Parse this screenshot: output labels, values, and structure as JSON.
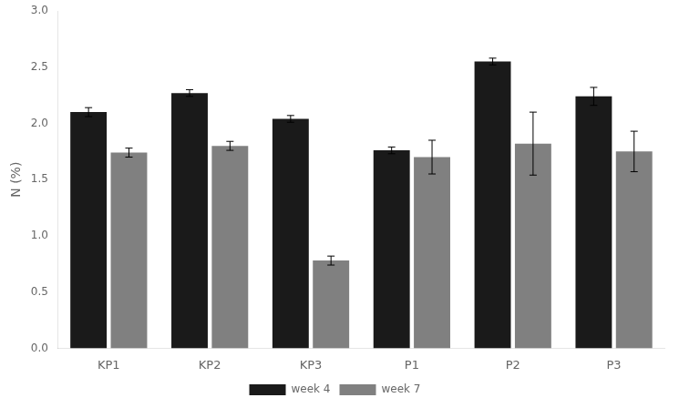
{
  "chart_data": {
    "type": "bar",
    "categories": [
      "KP1",
      "KP2",
      "KP3",
      "P1",
      "P2",
      "P3"
    ],
    "series": [
      {
        "name": "week 4",
        "color": "#1a1a1a",
        "values": [
          2.1,
          2.27,
          2.04,
          1.76,
          2.55,
          2.24
        ],
        "errors": [
          0.04,
          0.03,
          0.03,
          0.03,
          0.03,
          0.08
        ]
      },
      {
        "name": "week 7",
        "color": "#808080",
        "values": [
          1.74,
          1.8,
          0.78,
          1.7,
          1.82,
          1.75
        ],
        "errors": [
          0.04,
          0.04,
          0.04,
          0.15,
          0.28,
          0.18
        ]
      }
    ],
    "ylabel": "N (%)",
    "ylim": [
      0,
      3.0
    ],
    "yticks": [
      {
        "value": 0,
        "label": "0.0"
      },
      {
        "value": 0.5,
        "label": "0.5"
      },
      {
        "value": 1.0,
        "label": "1.0"
      },
      {
        "value": 1.5,
        "label": "1.5"
      },
      {
        "value": 2.0,
        "label": "2.0"
      },
      {
        "value": 2.5,
        "label": "2.5"
      },
      {
        "value": 3.0,
        "label": "3.0"
      }
    ],
    "grid": false,
    "legend": "bottom"
  }
}
